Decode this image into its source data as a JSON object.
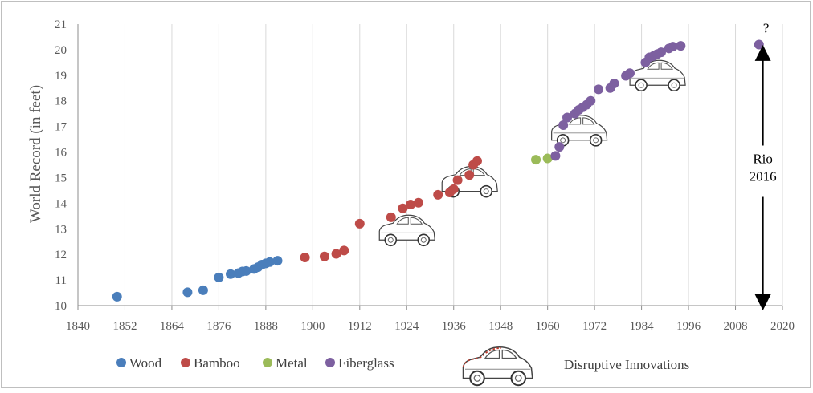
{
  "chart_data": {
    "type": "scatter",
    "title": "",
    "xlabel": "",
    "ylabel": "World Record (in feet)",
    "xlim": [
      1840,
      2020
    ],
    "ylim": [
      10,
      21
    ],
    "x_ticks": [
      "1840",
      "1852",
      "1864",
      "1876",
      "1888",
      "1900",
      "1912",
      "1924",
      "1936",
      "1948",
      "1960",
      "1972",
      "1984",
      "1996",
      "2008",
      "2020"
    ],
    "y_ticks": [
      "10",
      "11",
      "12",
      "13",
      "14",
      "15",
      "16",
      "17",
      "18",
      "19",
      "20",
      "21"
    ],
    "grid": "vertical",
    "series": [
      {
        "name": "Wood",
        "color": "#4a7ebb",
        "points": [
          [
            1850,
            10.35
          ],
          [
            1868,
            10.52
          ],
          [
            1872,
            10.6
          ],
          [
            1876,
            11.1
          ],
          [
            1879,
            11.23
          ],
          [
            1881,
            11.27
          ],
          [
            1882,
            11.33
          ],
          [
            1883,
            11.35
          ],
          [
            1885,
            11.43
          ],
          [
            1886,
            11.5
          ],
          [
            1887,
            11.6
          ],
          [
            1888,
            11.65
          ],
          [
            1889,
            11.7
          ],
          [
            1891,
            11.75
          ]
        ]
      },
      {
        "name": "Bamboo",
        "color": "#be4b48",
        "points": [
          [
            1898,
            11.88
          ],
          [
            1903,
            11.92
          ],
          [
            1906,
            12.02
          ],
          [
            1908,
            12.15
          ],
          [
            1912,
            13.2
          ],
          [
            1920,
            13.45
          ],
          [
            1923,
            13.8
          ],
          [
            1925,
            13.95
          ],
          [
            1927,
            14.02
          ],
          [
            1932,
            14.33
          ],
          [
            1935,
            14.42
          ],
          [
            1936,
            14.55
          ],
          [
            1937,
            14.9
          ],
          [
            1940,
            15.1
          ],
          [
            1941,
            15.5
          ],
          [
            1942,
            15.65
          ]
        ]
      },
      {
        "name": "Metal",
        "color": "#9bbb59",
        "points": [
          [
            1957,
            15.7
          ],
          [
            1960,
            15.75
          ]
        ]
      },
      {
        "name": "Fiberglass",
        "color": "#7d60a0",
        "points": [
          [
            1962,
            15.85
          ],
          [
            1963,
            16.2
          ],
          [
            1964,
            17.05
          ],
          [
            1965,
            17.35
          ],
          [
            1967,
            17.5
          ],
          [
            1968,
            17.65
          ],
          [
            1969,
            17.75
          ],
          [
            1970,
            17.85
          ],
          [
            1971,
            18.0
          ],
          [
            1973,
            18.45
          ],
          [
            1976,
            18.5
          ],
          [
            1977,
            18.68
          ],
          [
            1980,
            18.98
          ],
          [
            1981,
            19.08
          ],
          [
            1985,
            19.5
          ],
          [
            1986,
            19.7
          ],
          [
            1987,
            19.75
          ],
          [
            1988,
            19.83
          ],
          [
            1989,
            19.9
          ],
          [
            1991,
            20.05
          ],
          [
            1992,
            20.12
          ],
          [
            1994,
            20.15
          ],
          [
            2014,
            20.2
          ]
        ]
      }
    ],
    "cars_at": [
      [
        1924,
        13.0
      ],
      [
        1940,
        14.9
      ],
      [
        1968,
        16.9
      ],
      [
        1988,
        19.05
      ]
    ],
    "annotations": {
      "rio_line1": "Rio",
      "rio_line2": "2016",
      "question": "?",
      "rio_x": 2015,
      "rio_range": [
        10,
        20
      ]
    },
    "legend": {
      "position": "bottom",
      "items": [
        "Wood",
        "Bamboo",
        "Metal",
        "Fiberglass"
      ],
      "innovation_label": "Disruptive Innovations"
    }
  }
}
